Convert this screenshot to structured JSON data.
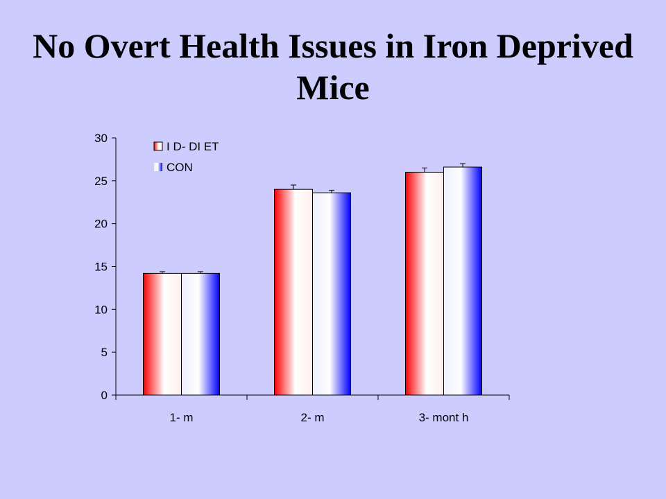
{
  "slide": {
    "title_line1": "No Overt Health Issues in Iron Deprived",
    "title_line2": "Mice"
  },
  "chart_data": {
    "type": "bar",
    "categories": [
      "1- m",
      "2- m",
      "3- mont h"
    ],
    "series": [
      {
        "name": "I D- DI ET",
        "values": [
          14.2,
          24.0,
          26.0
        ],
        "errors": [
          0.2,
          0.5,
          0.5
        ],
        "color": "#ff0000"
      },
      {
        "name": "CON",
        "values": [
          14.2,
          23.6,
          26.6
        ],
        "errors": [
          0.2,
          0.3,
          0.4
        ],
        "color": "#0000ff"
      }
    ],
    "yticks": [
      "0",
      "5",
      "10",
      "15",
      "20",
      "25",
      "30"
    ],
    "ylim": [
      0,
      30
    ],
    "grid": false,
    "legend": "top-left",
    "title": "",
    "xlabel": "",
    "ylabel": ""
  }
}
